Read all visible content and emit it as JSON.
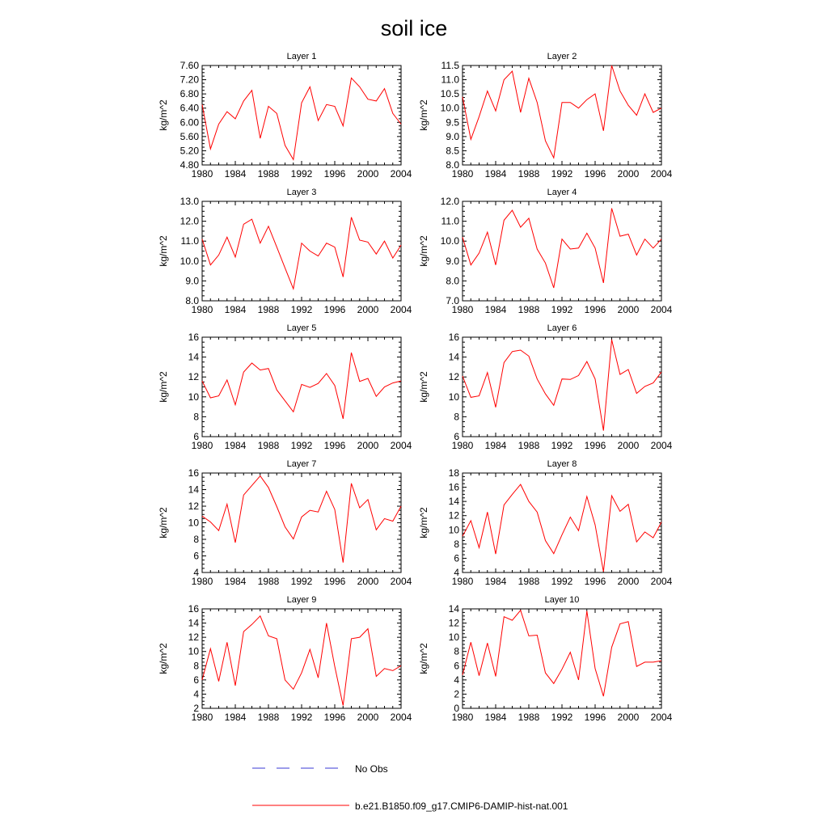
{
  "figure": {
    "title": "soil ice",
    "ylabel": "kg/m^2",
    "legend": [
      {
        "label": "No Obs",
        "color": "#3a3ad6",
        "style": "dashed"
      },
      {
        "label": "b.e21.B1850.f09_g17.CMIP6-DAMIP-hist-nat.001",
        "color": "#ff0000",
        "style": "solid"
      }
    ]
  },
  "chart_data": [
    {
      "type": "line",
      "title": "Layer 1",
      "ylabel": "kg/m^2",
      "xlim": [
        1980,
        2004
      ],
      "ylim": [
        4.8,
        7.6
      ],
      "xticks": [
        "1980",
        "1984",
        "1988",
        "1992",
        "1996",
        "2000",
        "2004"
      ],
      "yticks": [
        "4.80",
        "5.20",
        "5.60",
        "6.00",
        "6.40",
        "6.80",
        "7.20",
        "7.60"
      ],
      "x": [
        1980,
        1981,
        1982,
        1983,
        1984,
        1985,
        1986,
        1987,
        1988,
        1989,
        1990,
        1991,
        1992,
        1993,
        1994,
        1995,
        1996,
        1997,
        1998,
        1999,
        2000,
        2001,
        2002,
        2003,
        2004
      ],
      "series": [
        {
          "name": "b.e21.B1850.f09_g17.CMIP6-DAMIP-hist-nat.001",
          "values": [
            6.5,
            5.25,
            5.95,
            6.3,
            6.1,
            6.6,
            6.9,
            5.55,
            6.45,
            6.25,
            5.35,
            4.95,
            6.55,
            7.0,
            6.05,
            6.5,
            6.45,
            5.9,
            7.25,
            7.0,
            6.65,
            6.6,
            6.95,
            6.25,
            5.95
          ]
        }
      ]
    },
    {
      "type": "line",
      "title": "Layer 2",
      "ylabel": "kg/m^2",
      "xlim": [
        1980,
        2004
      ],
      "ylim": [
        8.0,
        11.5
      ],
      "xticks": [
        "1980",
        "1984",
        "1988",
        "1992",
        "1996",
        "2000",
        "2004"
      ],
      "yticks": [
        "8.0",
        "8.5",
        "9.0",
        "9.5",
        "10.0",
        "10.5",
        "11.0",
        "11.5"
      ],
      "x": [
        1980,
        1981,
        1982,
        1983,
        1984,
        1985,
        1986,
        1987,
        1988,
        1989,
        1990,
        1991,
        1992,
        1993,
        1994,
        1995,
        1996,
        1997,
        1998,
        1999,
        2000,
        2001,
        2002,
        2003,
        2004
      ],
      "series": [
        {
          "name": "b.e21.B1850.f09_g17.CMIP6-DAMIP-hist-nat.001",
          "values": [
            10.4,
            8.9,
            9.7,
            10.6,
            9.9,
            11.0,
            11.3,
            9.85,
            11.05,
            10.2,
            8.85,
            8.25,
            10.2,
            10.2,
            10.0,
            10.3,
            10.5,
            9.2,
            11.5,
            10.6,
            10.1,
            9.75,
            10.5,
            9.85,
            10.0
          ]
        }
      ]
    },
    {
      "type": "line",
      "title": "Layer 3",
      "ylabel": "kg/m^2",
      "xlim": [
        1980,
        2004
      ],
      "ylim": [
        8.0,
        13.0
      ],
      "xticks": [
        "1980",
        "1984",
        "1988",
        "1992",
        "1996",
        "2000",
        "2004"
      ],
      "yticks": [
        "8.0",
        "9.0",
        "10.0",
        "11.0",
        "12.0",
        "13.0"
      ],
      "x": [
        1980,
        1981,
        1982,
        1983,
        1984,
        1985,
        1986,
        1987,
        1988,
        1989,
        1990,
        1991,
        1992,
        1993,
        1994,
        1995,
        1996,
        1997,
        1998,
        1999,
        2000,
        2001,
        2002,
        2003,
        2004
      ],
      "series": [
        {
          "name": "b.e21.B1850.f09_g17.CMIP6-DAMIP-hist-nat.001",
          "values": [
            11.1,
            9.8,
            10.3,
            11.2,
            10.2,
            11.85,
            12.1,
            10.9,
            11.75,
            10.7,
            9.65,
            8.6,
            10.9,
            10.5,
            10.25,
            10.9,
            10.7,
            9.2,
            12.2,
            11.05,
            10.95,
            10.35,
            11.0,
            10.15,
            10.8
          ]
        }
      ]
    },
    {
      "type": "line",
      "title": "Layer 4",
      "ylabel": "kg/m^2",
      "xlim": [
        1980,
        2004
      ],
      "ylim": [
        7.0,
        12.0
      ],
      "xticks": [
        "1980",
        "1984",
        "1988",
        "1992",
        "1996",
        "2000",
        "2004"
      ],
      "yticks": [
        "7.0",
        "8.0",
        "9.0",
        "10.0",
        "11.0",
        "12.0"
      ],
      "x": [
        1980,
        1981,
        1982,
        1983,
        1984,
        1985,
        1986,
        1987,
        1988,
        1989,
        1990,
        1991,
        1992,
        1993,
        1994,
        1995,
        1996,
        1997,
        1998,
        1999,
        2000,
        2001,
        2002,
        2003,
        2004
      ],
      "series": [
        {
          "name": "b.e21.B1850.f09_g17.CMIP6-DAMIP-hist-nat.001",
          "values": [
            10.2,
            8.8,
            9.4,
            10.45,
            8.8,
            11.05,
            11.55,
            10.7,
            11.15,
            9.6,
            8.9,
            7.65,
            10.1,
            9.6,
            9.65,
            10.4,
            9.65,
            7.9,
            11.65,
            10.25,
            10.35,
            9.3,
            10.1,
            9.65,
            10.1
          ]
        }
      ]
    },
    {
      "type": "line",
      "title": "Layer 5",
      "ylabel": "kg/m^2",
      "xlim": [
        1980,
        2004
      ],
      "ylim": [
        6,
        16
      ],
      "xticks": [
        "1980",
        "1984",
        "1988",
        "1992",
        "1996",
        "2000",
        "2004"
      ],
      "yticks": [
        "6",
        "8",
        "10",
        "12",
        "14",
        "16"
      ],
      "x": [
        1980,
        1981,
        1982,
        1983,
        1984,
        1985,
        1986,
        1987,
        1988,
        1989,
        1990,
        1991,
        1992,
        1993,
        1994,
        1995,
        1996,
        1997,
        1998,
        1999,
        2000,
        2001,
        2002,
        2003,
        2004
      ],
      "series": [
        {
          "name": "b.e21.B1850.f09_g17.CMIP6-DAMIP-hist-nat.001",
          "values": [
            11.6,
            9.9,
            10.1,
            11.7,
            9.2,
            12.5,
            13.4,
            12.7,
            12.85,
            10.7,
            9.6,
            8.5,
            11.25,
            10.95,
            11.35,
            12.35,
            11.15,
            7.8,
            14.45,
            11.55,
            11.85,
            10.05,
            11.0,
            11.4,
            11.6
          ]
        }
      ]
    },
    {
      "type": "line",
      "title": "Layer 6",
      "ylabel": "kg/m^2",
      "xlim": [
        1980,
        2004
      ],
      "ylim": [
        6,
        16
      ],
      "xticks": [
        "1980",
        "1984",
        "1988",
        "1992",
        "1996",
        "2000",
        "2004"
      ],
      "yticks": [
        "6",
        "8",
        "10",
        "12",
        "14",
        "16"
      ],
      "x": [
        1980,
        1981,
        1982,
        1983,
        1984,
        1985,
        1986,
        1987,
        1988,
        1989,
        1990,
        1991,
        1992,
        1993,
        1994,
        1995,
        1996,
        1997,
        1998,
        1999,
        2000,
        2001,
        2002,
        2003,
        2004
      ],
      "series": [
        {
          "name": "b.e21.B1850.f09_g17.CMIP6-DAMIP-hist-nat.001",
          "values": [
            12.1,
            9.95,
            10.1,
            12.45,
            8.95,
            13.45,
            14.55,
            14.7,
            14.1,
            11.8,
            10.3,
            9.15,
            11.8,
            11.75,
            12.15,
            13.55,
            11.8,
            6.6,
            15.75,
            12.25,
            12.75,
            10.35,
            11.05,
            11.4,
            12.5
          ]
        }
      ]
    },
    {
      "type": "line",
      "title": "Layer 7",
      "ylabel": "kg/m^2",
      "xlim": [
        1980,
        2004
      ],
      "ylim": [
        4,
        16
      ],
      "xticks": [
        "1980",
        "1984",
        "1988",
        "1992",
        "1996",
        "2000",
        "2004"
      ],
      "yticks": [
        "4",
        "6",
        "8",
        "10",
        "12",
        "14",
        "16"
      ],
      "x": [
        1980,
        1981,
        1982,
        1983,
        1984,
        1985,
        1986,
        1987,
        1988,
        1989,
        1990,
        1991,
        1992,
        1993,
        1994,
        1995,
        1996,
        1997,
        1998,
        1999,
        2000,
        2001,
        2002,
        2003,
        2004
      ],
      "series": [
        {
          "name": "b.e21.B1850.f09_g17.CMIP6-DAMIP-hist-nat.001",
          "values": [
            10.8,
            10.1,
            9.05,
            12.25,
            7.6,
            13.35,
            14.5,
            15.65,
            14.25,
            11.95,
            9.5,
            8.05,
            10.7,
            11.5,
            11.3,
            13.8,
            11.6,
            5.2,
            14.75,
            11.8,
            12.8,
            9.15,
            10.5,
            10.2,
            12.0
          ]
        }
      ]
    },
    {
      "type": "line",
      "title": "Layer 8",
      "ylabel": "kg/m^2",
      "xlim": [
        1980,
        2004
      ],
      "ylim": [
        4,
        18
      ],
      "xticks": [
        "1980",
        "1984",
        "1988",
        "1992",
        "1996",
        "2000",
        "2004"
      ],
      "yticks": [
        "4",
        "6",
        "8",
        "10",
        "12",
        "14",
        "16",
        "18"
      ],
      "x": [
        1980,
        1981,
        1982,
        1983,
        1984,
        1985,
        1986,
        1987,
        1988,
        1989,
        1990,
        1991,
        1992,
        1993,
        1994,
        1995,
        1996,
        1997,
        1998,
        1999,
        2000,
        2001,
        2002,
        2003,
        2004
      ],
      "series": [
        {
          "name": "b.e21.B1850.f09_g17.CMIP6-DAMIP-hist-nat.001",
          "values": [
            9.1,
            11.3,
            7.5,
            12.5,
            6.6,
            13.5,
            15.0,
            16.4,
            14.0,
            12.5,
            8.5,
            6.65,
            9.3,
            11.8,
            9.9,
            14.7,
            10.7,
            4.1,
            14.8,
            12.6,
            13.6,
            8.3,
            9.7,
            8.9,
            11.1
          ]
        }
      ]
    },
    {
      "type": "line",
      "title": "Layer 9",
      "ylabel": "kg/m^2",
      "xlim": [
        1980,
        2004
      ],
      "ylim": [
        2,
        16
      ],
      "xticks": [
        "1980",
        "1984",
        "1988",
        "1992",
        "1996",
        "2000",
        "2004"
      ],
      "yticks": [
        "2",
        "4",
        "6",
        "8",
        "10",
        "12",
        "14",
        "16"
      ],
      "x": [
        1980,
        1981,
        1982,
        1983,
        1984,
        1985,
        1986,
        1987,
        1988,
        1989,
        1990,
        1991,
        1992,
        1993,
        1994,
        1995,
        1996,
        1997,
        1998,
        1999,
        2000,
        2001,
        2002,
        2003,
        2004
      ],
      "series": [
        {
          "name": "b.e21.B1850.f09_g17.CMIP6-DAMIP-hist-nat.001",
          "values": [
            6.0,
            10.4,
            5.8,
            11.3,
            5.2,
            12.8,
            13.8,
            15.0,
            12.2,
            11.8,
            6.0,
            4.7,
            7.0,
            10.3,
            6.3,
            14.0,
            7.9,
            2.4,
            11.8,
            12.0,
            13.2,
            6.5,
            7.6,
            7.3,
            8.0
          ]
        }
      ]
    },
    {
      "type": "line",
      "title": "Layer 10",
      "ylabel": "kg/m^2",
      "xlim": [
        1980,
        2004
      ],
      "ylim": [
        0,
        14
      ],
      "xticks": [
        "1980",
        "1984",
        "1988",
        "1992",
        "1996",
        "2000",
        "2004"
      ],
      "yticks": [
        "0",
        "2",
        "4",
        "6",
        "8",
        "10",
        "12",
        "14"
      ],
      "x": [
        1980,
        1981,
        1982,
        1983,
        1984,
        1985,
        1986,
        1987,
        1988,
        1989,
        1990,
        1991,
        1992,
        1993,
        1994,
        1995,
        1996,
        1997,
        1998,
        1999,
        2000,
        2001,
        2002,
        2003,
        2004
      ],
      "series": [
        {
          "name": "b.e21.B1850.f09_g17.CMIP6-DAMIP-hist-nat.001",
          "values": [
            4.7,
            9.3,
            4.6,
            9.2,
            4.5,
            12.9,
            12.4,
            13.8,
            10.2,
            10.3,
            5.0,
            3.5,
            5.5,
            7.9,
            4.0,
            13.7,
            5.6,
            1.7,
            8.6,
            11.9,
            12.2,
            5.9,
            6.5,
            6.5,
            6.7
          ]
        }
      ]
    }
  ]
}
